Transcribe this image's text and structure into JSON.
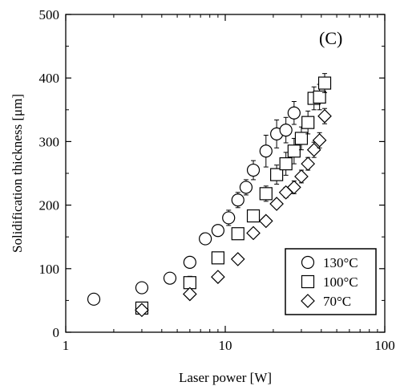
{
  "chart_data": {
    "type": "scatter",
    "panel_label": "(C)",
    "xlabel": "Laser power [W]",
    "ylabel": "Solidification thickness [μm]",
    "xscale": "log",
    "xlim": [
      1,
      100
    ],
    "ylim": [
      0,
      500
    ],
    "x_ticks": [
      1,
      10,
      100
    ],
    "y_ticks": [
      0,
      100,
      200,
      300,
      400,
      500
    ],
    "legend_position": "bottom-right",
    "grid": false,
    "series": [
      {
        "name": "130°C",
        "marker": "circle",
        "points": [
          {
            "x": 1.5,
            "y": 52,
            "err": 8
          },
          {
            "x": 3.0,
            "y": 70,
            "err": 8
          },
          {
            "x": 4.5,
            "y": 85,
            "err": 6
          },
          {
            "x": 6.0,
            "y": 110,
            "err": 8
          },
          {
            "x": 7.5,
            "y": 147,
            "err": 7
          },
          {
            "x": 9.0,
            "y": 160,
            "err": 8
          },
          {
            "x": 10.5,
            "y": 180,
            "err": 12
          },
          {
            "x": 12.0,
            "y": 208,
            "err": 12
          },
          {
            "x": 13.5,
            "y": 228,
            "err": 12
          },
          {
            "x": 15.0,
            "y": 255,
            "err": 15
          },
          {
            "x": 18.0,
            "y": 285,
            "err": 25
          },
          {
            "x": 21.0,
            "y": 312,
            "err": 22
          },
          {
            "x": 24.0,
            "y": 318,
            "err": 20
          },
          {
            "x": 27.0,
            "y": 345,
            "err": 18
          }
        ]
      },
      {
        "name": "100°C",
        "marker": "square",
        "points": [
          {
            "x": 3.0,
            "y": 38,
            "err": 8
          },
          {
            "x": 6.0,
            "y": 78,
            "err": 10
          },
          {
            "x": 9.0,
            "y": 117,
            "err": 8
          },
          {
            "x": 12.0,
            "y": 155,
            "err": 8
          },
          {
            "x": 15.0,
            "y": 183,
            "err": 8
          },
          {
            "x": 18.0,
            "y": 218,
            "err": 12
          },
          {
            "x": 21.0,
            "y": 248,
            "err": 15
          },
          {
            "x": 24.0,
            "y": 265,
            "err": 18
          },
          {
            "x": 27.0,
            "y": 285,
            "err": 20
          },
          {
            "x": 30.0,
            "y": 305,
            "err": 18
          },
          {
            "x": 33.0,
            "y": 330,
            "err": 18
          },
          {
            "x": 36.0,
            "y": 368,
            "err": 18
          },
          {
            "x": 39.0,
            "y": 370,
            "err": 20
          },
          {
            "x": 42.0,
            "y": 392,
            "err": 15
          }
        ]
      },
      {
        "name": "70°C",
        "marker": "diamond",
        "points": [
          {
            "x": 3.0,
            "y": 35,
            "err": 5
          },
          {
            "x": 6.0,
            "y": 60,
            "err": 5
          },
          {
            "x": 9.0,
            "y": 87,
            "err": 5
          },
          {
            "x": 12.0,
            "y": 115,
            "err": 6
          },
          {
            "x": 15.0,
            "y": 156,
            "err": 6
          },
          {
            "x": 18.0,
            "y": 175,
            "err": 7
          },
          {
            "x": 21.0,
            "y": 202,
            "err": 7
          },
          {
            "x": 24.0,
            "y": 220,
            "err": 8
          },
          {
            "x": 27.0,
            "y": 228,
            "err": 10
          },
          {
            "x": 30.0,
            "y": 245,
            "err": 10
          },
          {
            "x": 33.0,
            "y": 265,
            "err": 10
          },
          {
            "x": 36.0,
            "y": 287,
            "err": 12
          },
          {
            "x": 39.0,
            "y": 302,
            "err": 12
          },
          {
            "x": 42.0,
            "y": 340,
            "err": 12
          }
        ]
      }
    ]
  }
}
